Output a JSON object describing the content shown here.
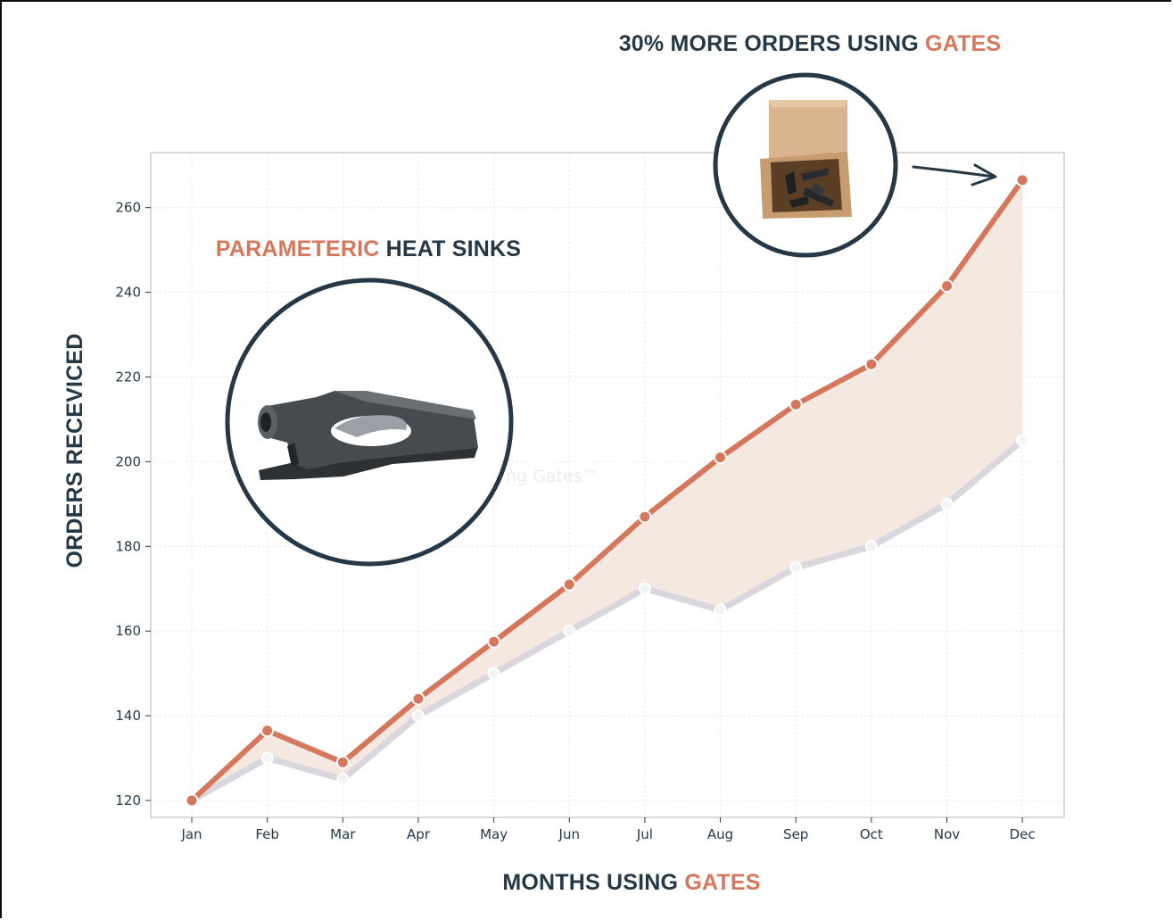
{
  "chart_data": {
    "type": "line",
    "categories": [
      "Jan",
      "Feb",
      "Mar",
      "Apr",
      "May",
      "Jun",
      "Jul",
      "Aug",
      "Sep",
      "Oct",
      "Nov",
      "Dec"
    ],
    "series": [
      {
        "values": [
          120,
          136.5,
          129,
          144,
          157.5,
          171,
          187,
          201,
          213.5,
          223,
          241.5,
          266.5
        ],
        "color": "#d5775c"
      },
      {
        "values": [
          120,
          130,
          125,
          140,
          150,
          160,
          170,
          165,
          175,
          180,
          190,
          205
        ],
        "color": "#dad6dd"
      }
    ],
    "ylim": [
      116,
      273
    ],
    "yticks": [
      120,
      140,
      160,
      180,
      200,
      220,
      240,
      260
    ],
    "grid": true,
    "fill_between": true,
    "fill_color": "#f5e8e1",
    "xlabel": {
      "prefix": "MONTHS USING ",
      "accent": "GATES"
    },
    "ylabel": "ORDERS RECEVICED",
    "annotations": {
      "top_title": {
        "prefix": "30% MORE ORDERS USING ",
        "accent": "GATES"
      },
      "left_title": {
        "accent": "PARAMETERIC",
        "suffix": " HEAT SINKS"
      },
      "watermark": "ng Gates™"
    }
  },
  "icons": {
    "product_image": "heat-sink-icon",
    "box_image": "shipping-box-icon",
    "arrow": "arrow-right-icon"
  },
  "colors": {
    "accent": "#d5775c",
    "dark": "#263845",
    "muted": "#dad6dd"
  }
}
